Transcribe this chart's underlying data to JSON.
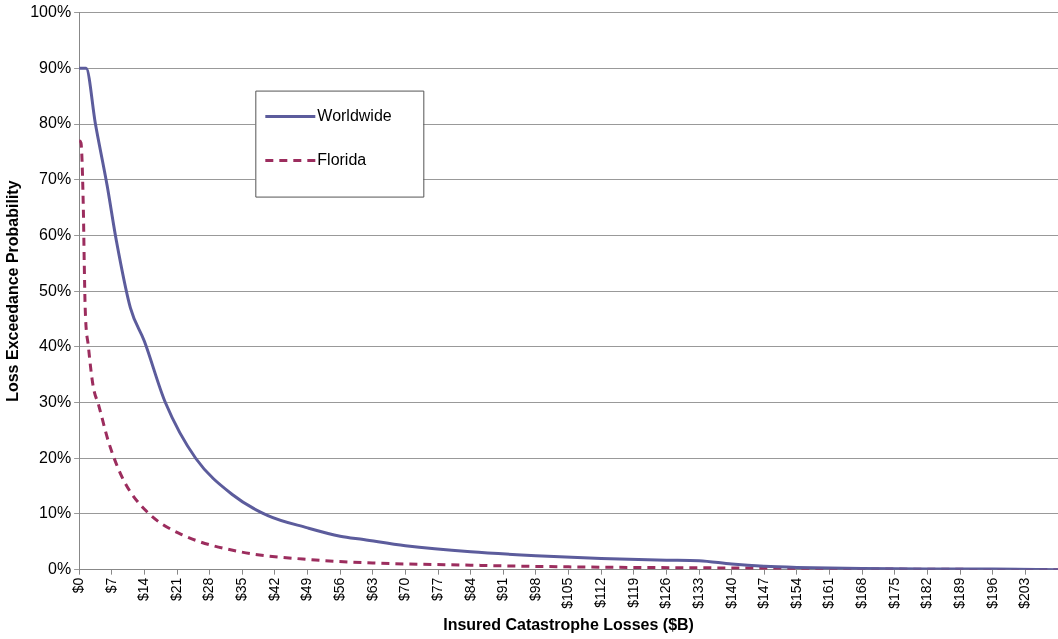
{
  "chart_data": {
    "type": "line",
    "xlabel": "Insured Catastrophe Losses ($B)",
    "ylabel": "Loss Exceedance Probability",
    "xlim": [
      0,
      210
    ],
    "xticks": [
      {
        "value": 0,
        "label": "$0"
      },
      {
        "value": 7,
        "label": "$7"
      },
      {
        "value": 14,
        "label": "$14"
      },
      {
        "value": 21,
        "label": "$21"
      },
      {
        "value": 28,
        "label": "$28"
      },
      {
        "value": 35,
        "label": "$35"
      },
      {
        "value": 42,
        "label": "$42"
      },
      {
        "value": 49,
        "label": "$49"
      },
      {
        "value": 56,
        "label": "$56"
      },
      {
        "value": 63,
        "label": "$63"
      },
      {
        "value": 70,
        "label": "$70"
      },
      {
        "value": 77,
        "label": "$77"
      },
      {
        "value": 84,
        "label": "$84"
      },
      {
        "value": 91,
        "label": "$91"
      },
      {
        "value": 98,
        "label": "$98"
      },
      {
        "value": 105,
        "label": "$105"
      },
      {
        "value": 112,
        "label": "$112"
      },
      {
        "value": 119,
        "label": "$119"
      },
      {
        "value": 126,
        "label": "$126"
      },
      {
        "value": 133,
        "label": "$133"
      },
      {
        "value": 140,
        "label": "$140"
      },
      {
        "value": 147,
        "label": "$147"
      },
      {
        "value": 154,
        "label": "$154"
      },
      {
        "value": 161,
        "label": "$161"
      },
      {
        "value": 168,
        "label": "$168"
      },
      {
        "value": 175,
        "label": "$175"
      },
      {
        "value": 182,
        "label": "$182"
      },
      {
        "value": 189,
        "label": "$189"
      },
      {
        "value": 196,
        "label": "$196"
      },
      {
        "value": 203,
        "label": "$203"
      }
    ],
    "ylim": [
      0,
      100
    ],
    "yticks": [
      {
        "value": 0,
        "label": "0%"
      },
      {
        "value": 10,
        "label": "10%"
      },
      {
        "value": 20,
        "label": "20%"
      },
      {
        "value": 30,
        "label": "30%"
      },
      {
        "value": 40,
        "label": "40%"
      },
      {
        "value": 50,
        "label": "50%"
      },
      {
        "value": 60,
        "label": "60%"
      },
      {
        "value": 70,
        "label": "70%"
      },
      {
        "value": 80,
        "label": "80%"
      },
      {
        "value": 90,
        "label": "90%"
      },
      {
        "value": 100,
        "label": "100%"
      }
    ],
    "grid": "y",
    "legend": "top left",
    "marker": "none",
    "series": [
      {
        "name": "Worldwide",
        "color": "#5c5c9c",
        "line_style": "solid",
        "x": [
          0,
          1.5,
          3.5,
          6,
          8,
          11,
          14,
          18.5,
          25,
          33,
          40.5,
          49,
          56,
          61,
          70,
          84,
          98,
          112,
          126,
          133,
          140,
          147,
          154,
          168,
          182,
          196,
          210
        ],
        "values": [
          90,
          90,
          80,
          69,
          59,
          47,
          41,
          30,
          20,
          13.4,
          9.7,
          7.5,
          6,
          5.4,
          4.3,
          3.2,
          2.5,
          2,
          1.7,
          1.6,
          1,
          0.6,
          0.4,
          0.2,
          0.1,
          0.1,
          0
        ]
      },
      {
        "name": "Florida",
        "color": "#9c2d5e",
        "line_style": "dashed",
        "x": [
          0,
          0.4,
          0.9,
          1.1,
          1.3,
          2,
          3,
          4.2,
          6.4,
          9.7,
          14.8,
          22,
          34.6,
          48,
          63,
          84,
          105,
          140,
          175,
          210
        ],
        "values": [
          77,
          76.6,
          65,
          55,
          47,
          40,
          33,
          29.5,
          22.7,
          15.8,
          10.2,
          6.3,
          3.2,
          1.9,
          1.2,
          0.8,
          0.5,
          0.3,
          0.1,
          0
        ]
      }
    ]
  }
}
